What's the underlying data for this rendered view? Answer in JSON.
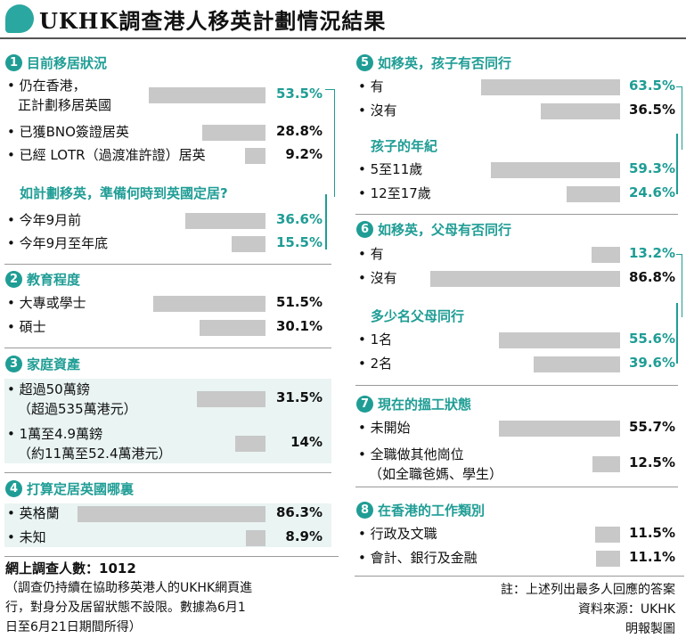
{
  "title": "UKHK調查港人移英計劃情況結果",
  "chart_data": [
    {
      "type": "bar",
      "number": "1",
      "heading": "目前移居狀況",
      "rows": [
        {
          "label": [
            "仍在香港，",
            "正計劃移居英國"
          ],
          "value": 53.5,
          "display": "53.5%",
          "highlight": true
        },
        {
          "label": [
            "已獲BNO簽證居英"
          ],
          "value": 28.8,
          "display": "28.8%",
          "highlight": false
        },
        {
          "label": [
            "已經 LOTR（過渡准許證）居英"
          ],
          "value": 9.2,
          "display": "9.2%",
          "highlight": false
        }
      ]
    },
    {
      "type": "bar",
      "heading": "如計劃移英，準備何時到英國定居?",
      "rows": [
        {
          "label": [
            "今年9月前"
          ],
          "value": 36.6,
          "display": "36.6%",
          "highlight": true
        },
        {
          "label": [
            "今年9月至年底"
          ],
          "value": 15.5,
          "display": "15.5%",
          "highlight": true
        }
      ]
    },
    {
      "type": "bar",
      "number": "2",
      "heading": "教育程度",
      "rows": [
        {
          "label": [
            "大專或學士"
          ],
          "value": 51.5,
          "display": "51.5%",
          "highlight": false
        },
        {
          "label": [
            "碩士"
          ],
          "value": 30.1,
          "display": "30.1%",
          "highlight": false
        }
      ]
    },
    {
      "type": "bar",
      "number": "3",
      "heading": "家庭資產",
      "rows": [
        {
          "label": [
            "超過50萬鎊",
            "（超過535萬港元）"
          ],
          "value": 31.5,
          "display": "31.5%",
          "highlight": false
        },
        {
          "label": [
            "1萬至4.9萬鎊",
            "（約11萬至52.4萬港元）"
          ],
          "value": 14,
          "display": "14%",
          "highlight": false
        }
      ]
    },
    {
      "type": "bar",
      "number": "4",
      "heading": "打算定居英國哪裏",
      "rows": [
        {
          "label": [
            "英格蘭"
          ],
          "value": 86.3,
          "display": "86.3%",
          "highlight": false
        },
        {
          "label": [
            "未知"
          ],
          "value": 8.9,
          "display": "8.9%",
          "highlight": false
        }
      ]
    },
    {
      "type": "bar",
      "number": "5",
      "heading": "如移英，孩子有否同行",
      "rows": [
        {
          "label": [
            "有"
          ],
          "value": 63.5,
          "display": "63.5%",
          "highlight": true
        },
        {
          "label": [
            "沒有"
          ],
          "value": 36.5,
          "display": "36.5%",
          "highlight": false
        }
      ]
    },
    {
      "type": "bar",
      "heading": "孩子的年紀",
      "rows": [
        {
          "label": [
            "5至11歲"
          ],
          "value": 59.3,
          "display": "59.3%",
          "highlight": true
        },
        {
          "label": [
            "12至17歲"
          ],
          "value": 24.6,
          "display": "24.6%",
          "highlight": true
        }
      ]
    },
    {
      "type": "bar",
      "number": "6",
      "heading": "如移英，父母有否同行",
      "rows": [
        {
          "label": [
            "有"
          ],
          "value": 13.2,
          "display": "13.2%",
          "highlight": true
        },
        {
          "label": [
            "沒有"
          ],
          "value": 86.8,
          "display": "86.8%",
          "highlight": false
        }
      ]
    },
    {
      "type": "bar",
      "heading": "多少名父母同行",
      "rows": [
        {
          "label": [
            "1名"
          ],
          "value": 55.6,
          "display": "55.6%",
          "highlight": true
        },
        {
          "label": [
            "2名"
          ],
          "value": 39.6,
          "display": "39.6%",
          "highlight": true
        }
      ]
    },
    {
      "type": "bar",
      "number": "7",
      "heading": "現在的搵工狀態",
      "rows": [
        {
          "label": [
            "未開始"
          ],
          "value": 55.7,
          "display": "55.7%",
          "highlight": false
        },
        {
          "label": [
            "全職做其他崗位",
            "（如全職爸媽、學生）"
          ],
          "value": 12.5,
          "display": "12.5%",
          "highlight": false
        }
      ]
    },
    {
      "type": "bar",
      "number": "8",
      "heading": "在香港的工作類別",
      "rows": [
        {
          "label": [
            "行政及文職"
          ],
          "value": 11.5,
          "display": "11.5%",
          "highlight": false
        },
        {
          "label": [
            "會計、銀行及金融"
          ],
          "value": 11.1,
          "display": "11.1%",
          "highlight": false
        }
      ]
    }
  ],
  "footer": {
    "sample_label": "網上調查人數：",
    "sample_value": "1012",
    "note_lines": [
      "（調查仍持續在協助移英港人的UKHK網頁進",
      "行，對身分及居留狀態不設限。數據為6月1",
      "日至6月21日期間所得）"
    ],
    "right_lines": [
      "註：上述列出最多人回應的答案",
      "資料來源：UKHK",
      "明報製圖"
    ]
  }
}
